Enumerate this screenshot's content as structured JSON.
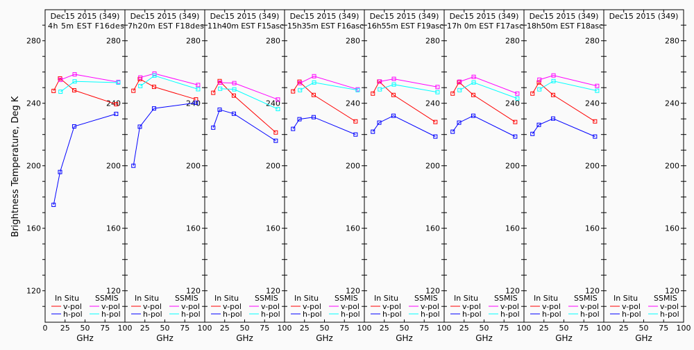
{
  "chart_data": {
    "type": "line",
    "ylabel": "Brightness Temperature, Deg K",
    "xlabel": "GHz",
    "xlim": [
      0,
      100
    ],
    "ylim": [
      100,
      300
    ],
    "x_ticks": [
      0,
      25,
      50,
      75,
      100
    ],
    "y_ticks": [
      120,
      160,
      200,
      240,
      280
    ],
    "grid": false,
    "legend": {
      "placement": "bottom",
      "group_insitu": "In Situ",
      "group_ssmis": "SSMIS",
      "vpol": "v-pol",
      "hpol": "h-pol"
    },
    "colors": {
      "insitu_v": "#ff0000",
      "insitu_h": "#0000ff",
      "ssmis_v": "#ff00ff",
      "ssmis_h": "#00ffff"
    },
    "insitu_freqs": [
      10.65,
      18.7,
      36.5,
      89
    ],
    "ssmis_freqs": [
      19.35,
      37,
      91.65
    ],
    "panels": [
      {
        "title1": "Dec15 2015 (349)",
        "title2": "4h 5m EST F16des",
        "insitu_v": [
          247.9,
          255.9,
          248.3,
          239.4
        ],
        "insitu_h": [
          175,
          196,
          225.2,
          233.2
        ],
        "ssmis_v": [
          255,
          258.5,
          253.6
        ],
        "ssmis_h": [
          247.4,
          254,
          253.2
        ]
      },
      {
        "title1": "Dec15 2015 (349)",
        "title2": "7h20m EST F18des",
        "insitu_v": [
          248,
          255.5,
          250.5,
          242.5
        ],
        "insitu_h": [
          200,
          225,
          236.7,
          240.3
        ],
        "ssmis_v": [
          256.5,
          259,
          251.7
        ],
        "ssmis_h": [
          251,
          257.7,
          249
        ]
      },
      {
        "title1": "Dec15 2015 (349)",
        "title2": "11h40m EST F15asc",
        "insitu_v": [
          246.7,
          254.2,
          244.9,
          221.3
        ],
        "insitu_h": [
          224.4,
          235.9,
          233.3,
          216
        ],
        "ssmis_v": [
          253.2,
          252.9,
          242.4
        ],
        "ssmis_h": [
          249.3,
          248.9,
          236.3
        ]
      },
      {
        "title1": "Dec15 2015 (349)",
        "title2": "15h35m EST F16asc",
        "insitu_v": [
          247.6,
          253.8,
          245.3,
          228.4
        ],
        "insitu_h": [
          223.6,
          229.8,
          231.1,
          220
        ],
        "ssmis_v": [
          252.9,
          257.3,
          248.9
        ],
        "ssmis_h": [
          248.4,
          253.3,
          248.4
        ]
      },
      {
        "title1": "Dec15 2015 (349)",
        "title2": "16h55m EST F19asc",
        "insitu_v": [
          246.2,
          253.9,
          245.3,
          228
        ],
        "insitu_h": [
          221.8,
          227.6,
          232,
          218.7
        ],
        "ssmis_v": [
          253.9,
          255.6,
          250.4
        ],
        "ssmis_h": [
          248.9,
          252,
          247.1
        ]
      },
      {
        "title1": "Dec15 2015 (349)",
        "title2": "17h 0m EST F17asc",
        "insitu_v": [
          246.2,
          253.5,
          245.3,
          228
        ],
        "insitu_h": [
          221.8,
          227.6,
          232,
          218.7
        ],
        "ssmis_v": [
          253.8,
          256.9,
          246.2
        ],
        "ssmis_h": [
          248.4,
          253.3,
          243.1
        ]
      },
      {
        "title1": "Dec15 2015 (349)",
        "title2": "18h50m EST F18asc",
        "insitu_v": [
          246.2,
          253.3,
          245.3,
          228.4
        ],
        "insitu_h": [
          220.4,
          226.2,
          230.2,
          218.7
        ],
        "ssmis_v": [
          255.1,
          257.8,
          251.1
        ],
        "ssmis_h": [
          248.9,
          254.2,
          248
        ]
      },
      {
        "title1": "Dec15 2015 (349)",
        "title2": "",
        "insitu_v": [],
        "insitu_h": [],
        "ssmis_v": [],
        "ssmis_h": []
      }
    ]
  }
}
